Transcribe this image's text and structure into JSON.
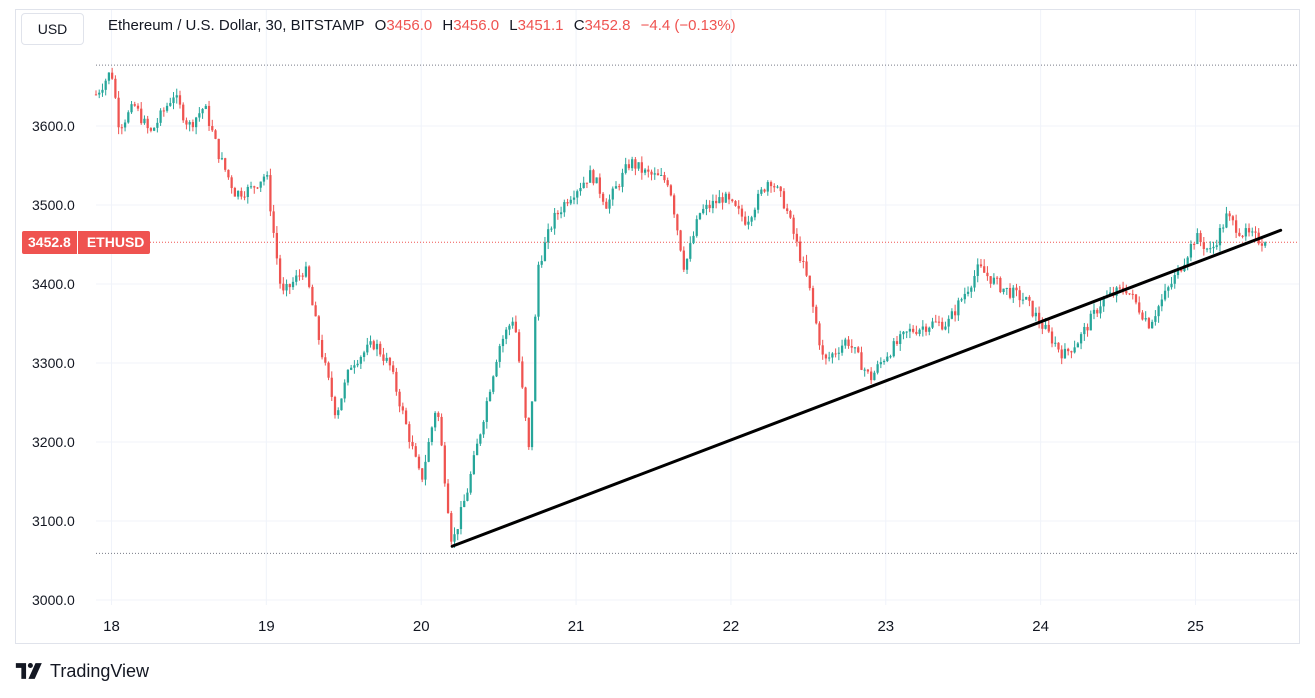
{
  "header": {
    "currency": "USD",
    "symbol": "Ethereum / U.S. Dollar, 30, BITSTAMP",
    "open_label": "O",
    "open": "3456.0",
    "high_label": "H",
    "high": "3456.0",
    "low_label": "L",
    "low": "3451.1",
    "close_label": "C",
    "close": "3452.8",
    "change": "−4.4 (−0.13%)"
  },
  "price_tag": {
    "price": "3452.8",
    "symbol": "ETHUSD"
  },
  "brand": {
    "name": "TradingView"
  },
  "colors": {
    "up": "#26a69a",
    "down": "#ef5350",
    "grid": "#f0f3fa",
    "trendline": "#000000"
  },
  "chart_data": {
    "type": "candlestick",
    "timeframe": "30",
    "ylim": [
      3000,
      3690
    ],
    "y_ticks": [
      "3000.0",
      "3100.0",
      "3200.0",
      "3300.0",
      "3400.0",
      "3500.0",
      "3600.0"
    ],
    "x_ticks": [
      "18",
      "19",
      "20",
      "21",
      "22",
      "23",
      "24",
      "25"
    ],
    "x_range_days": [
      17.9,
      25.55
    ],
    "grid": true,
    "range_high": 3677,
    "range_low": 3059,
    "last_price": 3452.8,
    "trendline": {
      "start": {
        "day": 20.2,
        "price": 3068
      },
      "end": {
        "day": 25.55,
        "price": 3468
      }
    },
    "path": [
      [
        17.9,
        3640
      ],
      [
        18.0,
        3670
      ],
      [
        18.05,
        3600
      ],
      [
        18.15,
        3625
      ],
      [
        18.25,
        3590
      ],
      [
        18.4,
        3640
      ],
      [
        18.5,
        3600
      ],
      [
        18.6,
        3625
      ],
      [
        18.7,
        3560
      ],
      [
        18.8,
        3515
      ],
      [
        18.9,
        3520
      ],
      [
        19.0,
        3540
      ],
      [
        19.05,
        3460
      ],
      [
        19.1,
        3385
      ],
      [
        19.25,
        3420
      ],
      [
        19.35,
        3320
      ],
      [
        19.45,
        3235
      ],
      [
        19.55,
        3300
      ],
      [
        19.7,
        3325
      ],
      [
        19.8,
        3295
      ],
      [
        20.0,
        3150
      ],
      [
        20.1,
        3250
      ],
      [
        20.2,
        3070
      ],
      [
        20.3,
        3140
      ],
      [
        20.4,
        3230
      ],
      [
        20.5,
        3320
      ],
      [
        20.6,
        3360
      ],
      [
        20.7,
        3180
      ],
      [
        20.75,
        3420
      ],
      [
        20.85,
        3480
      ],
      [
        20.95,
        3510
      ],
      [
        21.1,
        3540
      ],
      [
        21.2,
        3500
      ],
      [
        21.35,
        3555
      ],
      [
        21.45,
        3540
      ],
      [
        21.6,
        3530
      ],
      [
        21.7,
        3420
      ],
      [
        21.8,
        3490
      ],
      [
        21.95,
        3510
      ],
      [
        22.1,
        3480
      ],
      [
        22.25,
        3535
      ],
      [
        22.35,
        3500
      ],
      [
        22.5,
        3400
      ],
      [
        22.6,
        3300
      ],
      [
        22.75,
        3330
      ],
      [
        22.9,
        3280
      ],
      [
        23.0,
        3310
      ],
      [
        23.15,
        3340
      ],
      [
        23.3,
        3350
      ],
      [
        23.4,
        3350
      ],
      [
        23.6,
        3420
      ],
      [
        23.75,
        3395
      ],
      [
        23.9,
        3380
      ],
      [
        24.0,
        3350
      ],
      [
        24.15,
        3310
      ],
      [
        24.25,
        3330
      ],
      [
        24.4,
        3380
      ],
      [
        24.55,
        3395
      ],
      [
        24.7,
        3350
      ],
      [
        24.8,
        3385
      ],
      [
        24.9,
        3420
      ],
      [
        25.0,
        3460
      ],
      [
        25.1,
        3440
      ],
      [
        25.2,
        3485
      ],
      [
        25.3,
        3465
      ],
      [
        25.45,
        3453
      ]
    ],
    "candle_count": 363
  }
}
